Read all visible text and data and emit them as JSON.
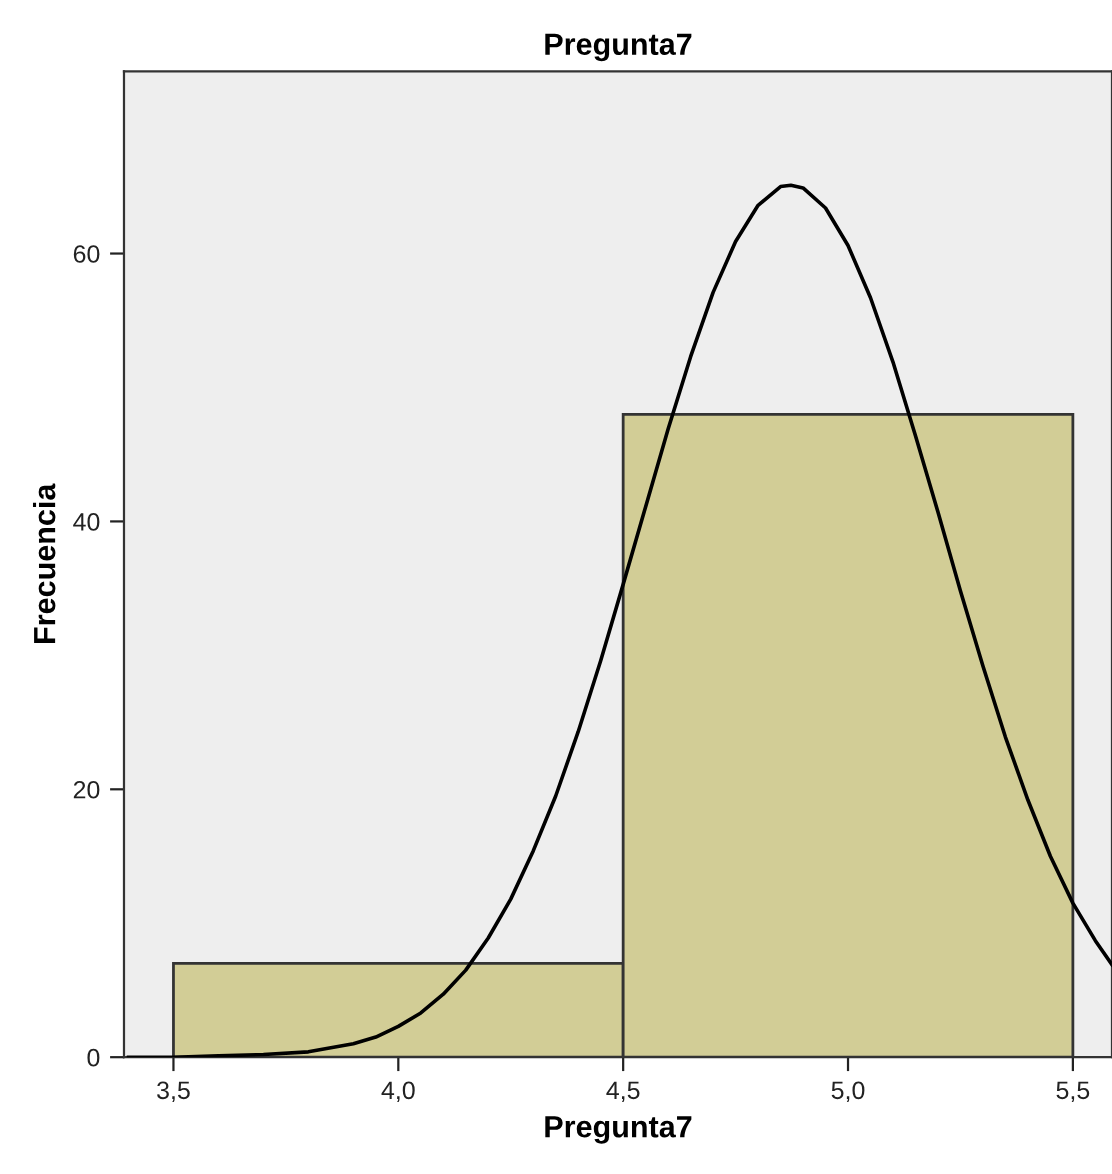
{
  "chart_data": {
    "type": "histogram",
    "title": "Pregunta7",
    "xlabel": "Pregunta7",
    "ylabel": "Frecuencia",
    "bins": [
      3.5,
      4.5,
      5.5
    ],
    "values": [
      7,
      48
    ],
    "color": "#d2cd96",
    "series": [
      {
        "type": "line",
        "color": "#000000",
        "x": [
          3.4,
          3.5,
          3.6,
          3.7,
          3.8,
          3.9,
          3.95,
          4.0,
          4.05,
          4.1,
          4.15,
          4.2,
          4.25,
          4.3,
          4.35,
          4.4,
          4.45,
          4.5,
          4.55,
          4.6,
          4.65,
          4.7,
          4.75,
          4.8,
          4.85,
          4.873,
          4.9,
          4.95,
          5.0,
          5.05,
          5.1,
          5.15,
          5.2,
          5.25,
          5.3,
          5.35,
          5.4,
          5.45,
          5.5,
          5.55,
          5.587
        ],
        "values": [
          0,
          0,
          0.1,
          0.2,
          0.4,
          1.0,
          1.5,
          2.3,
          3.3,
          4.7,
          6.5,
          8.9,
          11.8,
          15.4,
          19.5,
          24.3,
          29.6,
          35.3,
          41.1,
          46.9,
          52.3,
          57.1,
          60.9,
          63.6,
          65.0,
          65.1,
          64.9,
          63.4,
          60.6,
          56.7,
          51.9,
          46.4,
          40.7,
          34.8,
          29.2,
          23.9,
          19.2,
          15.0,
          11.5,
          8.7,
          6.9
        ]
      }
    ],
    "xlim": [
      3.39,
      5.587
    ],
    "ylim": [
      0,
      73.6
    ],
    "xticks": [
      {
        "value": 3.5,
        "label": "3,5"
      },
      {
        "value": 4.0,
        "label": "4,0"
      },
      {
        "value": 4.5,
        "label": "4,5"
      },
      {
        "value": 5.0,
        "label": "5,0"
      },
      {
        "value": 5.5,
        "label": "5,5"
      }
    ],
    "yticks": [
      0,
      20,
      40,
      60
    ],
    "grid": false,
    "legend": false
  }
}
